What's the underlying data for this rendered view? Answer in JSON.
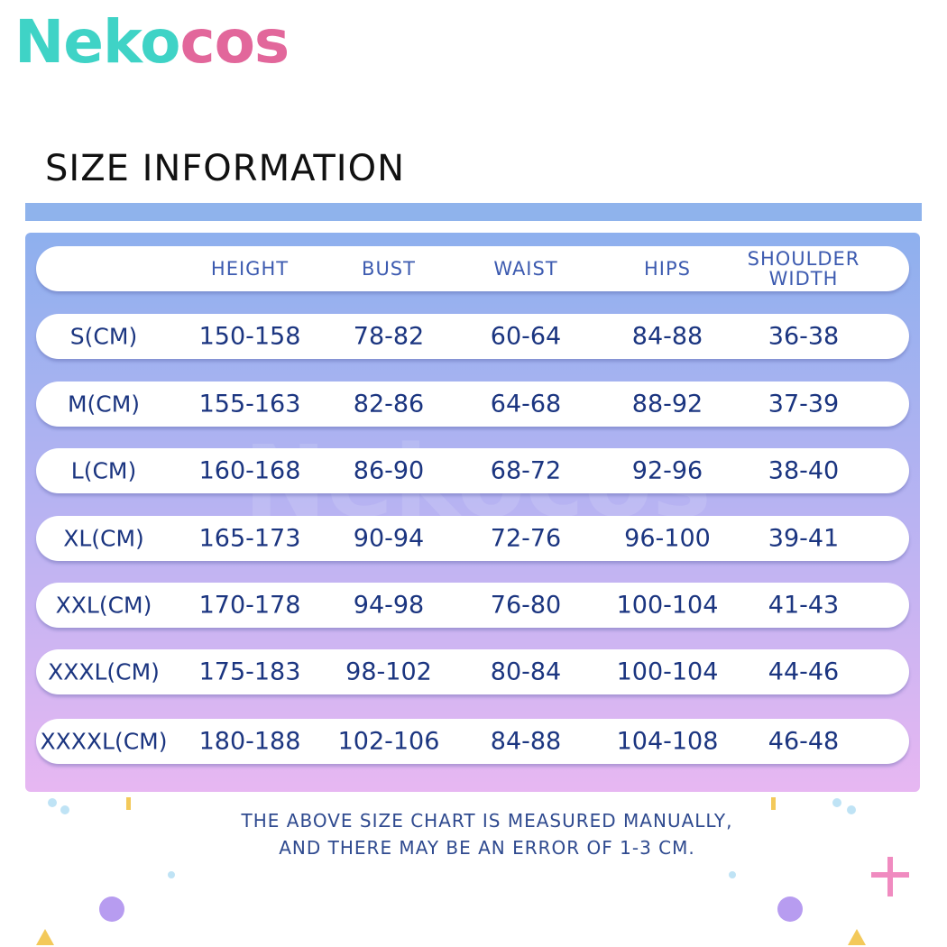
{
  "logo": {
    "parts": [
      {
        "text": "Nek",
        "color": "#3fd3c6"
      },
      {
        "text": "o",
        "color": "#3fd3c6"
      },
      {
        "text": "cos",
        "color": "#e2679b"
      }
    ]
  },
  "title": "SIZE INFORMATION",
  "watermark": "Nekocos",
  "table": {
    "columns": [
      "HEIGHT",
      "BUST",
      "WAIST",
      "HIPS",
      [
        "SHOULDER",
        "WIDTH"
      ]
    ],
    "rows": [
      [
        "S(CM)",
        "150-158",
        "78-82",
        "60-64",
        "84-88",
        "36-38"
      ],
      [
        "M(CM)",
        "155-163",
        "82-86",
        "64-68",
        "88-92",
        "37-39"
      ],
      [
        "L(CM)",
        "160-168",
        "86-90",
        "68-72",
        "92-96",
        "38-40"
      ],
      [
        "XL(CM)",
        "165-173",
        "90-94",
        "72-76",
        "96-100",
        "39-41"
      ],
      [
        "XXL(CM)",
        "170-178",
        "94-98",
        "76-80",
        "100-104",
        "41-43"
      ],
      [
        "XXXL(CM)",
        "175-183",
        "98-102",
        "80-84",
        "100-104",
        "44-46"
      ],
      [
        "XXXXL(CM)",
        "180-188",
        "102-106",
        "84-88",
        "104-108",
        "46-48"
      ]
    ]
  },
  "note": [
    "THE ABOVE SIZE CHART IS MEASURED MANUALLY,",
    "AND THERE MAY BE AN ERROR OF 1-3 CM."
  ]
}
